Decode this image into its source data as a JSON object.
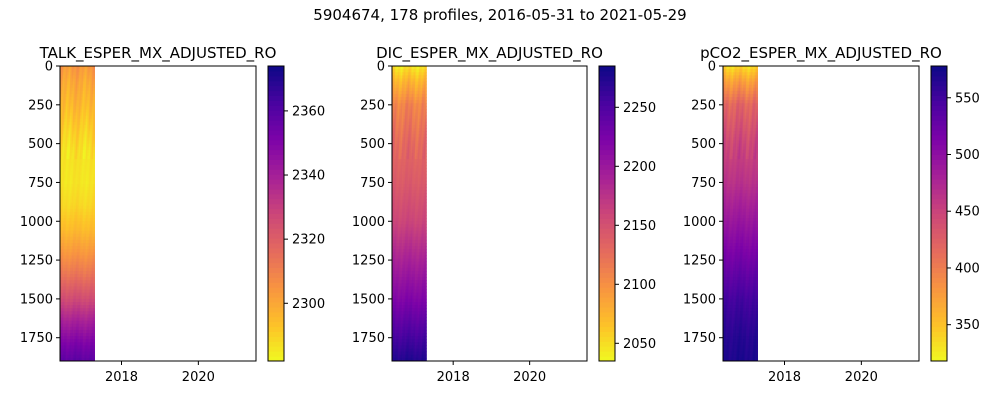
{
  "figure": {
    "suptitle": "5904674, 178 profiles, 2016-05-31 to 2021-05-29"
  },
  "chart_data": [
    {
      "type": "heatmap",
      "title": "TALK_ESPER_MX_ADJUSTED_RO",
      "xlim": [
        2016.4,
        2021.5
      ],
      "ylim": [
        1900,
        0
      ],
      "data_x_range": [
        2016.4,
        2017.3
      ],
      "xticks": [
        2018,
        2020
      ],
      "yticks": [
        0,
        250,
        500,
        750,
        1000,
        1250,
        1500,
        1750
      ],
      "colormap": "plasma_r",
      "clim": [
        2282,
        2374
      ],
      "cbar_ticks": [
        2300,
        2320,
        2340,
        2360
      ],
      "profile": [
        {
          "depth": 0,
          "value": 2304
        },
        {
          "depth": 100,
          "value": 2300
        },
        {
          "depth": 250,
          "value": 2296
        },
        {
          "depth": 400,
          "value": 2291
        },
        {
          "depth": 550,
          "value": 2287
        },
        {
          "depth": 750,
          "value": 2286
        },
        {
          "depth": 900,
          "value": 2289
        },
        {
          "depth": 1050,
          "value": 2295
        },
        {
          "depth": 1200,
          "value": 2304
        },
        {
          "depth": 1350,
          "value": 2314
        },
        {
          "depth": 1500,
          "value": 2326
        },
        {
          "depth": 1650,
          "value": 2340
        },
        {
          "depth": 1800,
          "value": 2352
        },
        {
          "depth": 1900,
          "value": 2358
        }
      ]
    },
    {
      "type": "heatmap",
      "title": "DIC_ESPER_MX_ADJUSTED_RO",
      "xlim": [
        2016.4,
        2021.5
      ],
      "ylim": [
        1900,
        0
      ],
      "data_x_range": [
        2016.4,
        2017.3
      ],
      "xticks": [
        2018,
        2020
      ],
      "yticks": [
        0,
        250,
        500,
        750,
        1000,
        1250,
        1500,
        1750
      ],
      "colormap": "plasma_r",
      "clim": [
        2035,
        2285
      ],
      "cbar_ticks": [
        2050,
        2100,
        2150,
        2200,
        2250
      ],
      "profile": [
        {
          "depth": 0,
          "value": 2045
        },
        {
          "depth": 100,
          "value": 2075
        },
        {
          "depth": 250,
          "value": 2110
        },
        {
          "depth": 500,
          "value": 2130
        },
        {
          "depth": 750,
          "value": 2142
        },
        {
          "depth": 1000,
          "value": 2160
        },
        {
          "depth": 1250,
          "value": 2190
        },
        {
          "depth": 1500,
          "value": 2220
        },
        {
          "depth": 1750,
          "value": 2255
        },
        {
          "depth": 1900,
          "value": 2275
        }
      ]
    },
    {
      "type": "heatmap",
      "title": "pCO2_ESPER_MX_ADJUSTED_RO",
      "xlim": [
        2016.4,
        2021.5
      ],
      "ylim": [
        1900,
        0
      ],
      "data_x_range": [
        2016.4,
        2017.3
      ],
      "xticks": [
        2018,
        2020
      ],
      "yticks": [
        0,
        250,
        500,
        750,
        1000,
        1250,
        1500,
        1750
      ],
      "colormap": "plasma_r",
      "clim": [
        318,
        578
      ],
      "cbar_ticks": [
        350,
        400,
        450,
        500,
        550
      ],
      "profile": [
        {
          "depth": 0,
          "value": 335
        },
        {
          "depth": 100,
          "value": 375
        },
        {
          "depth": 250,
          "value": 420
        },
        {
          "depth": 500,
          "value": 448
        },
        {
          "depth": 750,
          "value": 465
        },
        {
          "depth": 1000,
          "value": 492
        },
        {
          "depth": 1250,
          "value": 520
        },
        {
          "depth": 1500,
          "value": 548
        },
        {
          "depth": 1750,
          "value": 565
        },
        {
          "depth": 1900,
          "value": 570
        }
      ]
    }
  ]
}
